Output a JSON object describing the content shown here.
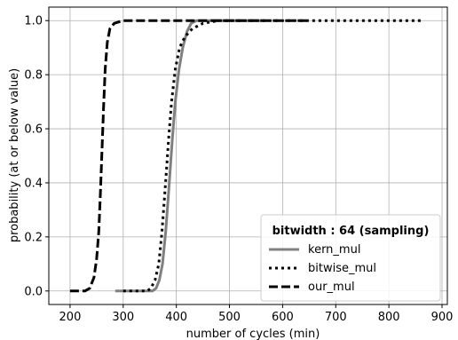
{
  "chart_data": {
    "type": "line",
    "xlabel": "number of cycles (min)",
    "ylabel": "probability (at or below value)",
    "xlim": [
      160,
      910
    ],
    "ylim": [
      -0.05,
      1.05
    ],
    "xticks": [
      200,
      300,
      400,
      500,
      600,
      700,
      800,
      900
    ],
    "yticks": [
      0.0,
      0.2,
      0.4,
      0.6,
      0.8,
      1.0
    ],
    "grid": true,
    "legend": {
      "title": "bitwidth :  64 (sampling)",
      "position": "lower-right",
      "entries": [
        "kern_mul",
        "bitwise_mul",
        "our_mul"
      ]
    },
    "series": [
      {
        "name": "kern_mul",
        "style": "solid",
        "color": "#808080",
        "points": [
          [
            285,
            0.0
          ],
          [
            355,
            0.0
          ],
          [
            362,
            0.01
          ],
          [
            368,
            0.04
          ],
          [
            374,
            0.1
          ],
          [
            380,
            0.22
          ],
          [
            386,
            0.38
          ],
          [
            392,
            0.55
          ],
          [
            398,
            0.7
          ],
          [
            405,
            0.82
          ],
          [
            412,
            0.9
          ],
          [
            420,
            0.96
          ],
          [
            428,
            0.99
          ],
          [
            438,
            1.0
          ],
          [
            560,
            1.0
          ]
        ]
      },
      {
        "name": "bitwise_mul",
        "style": "dotted",
        "color": "#000000",
        "points": [
          [
            300,
            0.0
          ],
          [
            345,
            0.0
          ],
          [
            352,
            0.01
          ],
          [
            360,
            0.04
          ],
          [
            367,
            0.1
          ],
          [
            373,
            0.22
          ],
          [
            379,
            0.38
          ],
          [
            385,
            0.55
          ],
          [
            391,
            0.7
          ],
          [
            398,
            0.82
          ],
          [
            406,
            0.9
          ],
          [
            416,
            0.94
          ],
          [
            430,
            0.97
          ],
          [
            450,
            0.99
          ],
          [
            480,
            1.0
          ],
          [
            865,
            1.0
          ]
        ]
      },
      {
        "name": "our_mul",
        "style": "dashed",
        "color": "#000000",
        "points": [
          [
            200,
            0.0
          ],
          [
            228,
            0.0
          ],
          [
            237,
            0.01
          ],
          [
            245,
            0.05
          ],
          [
            250,
            0.12
          ],
          [
            254,
            0.22
          ],
          [
            257,
            0.36
          ],
          [
            260,
            0.52
          ],
          [
            263,
            0.68
          ],
          [
            266,
            0.82
          ],
          [
            270,
            0.92
          ],
          [
            275,
            0.97
          ],
          [
            283,
            0.99
          ],
          [
            300,
            1.0
          ],
          [
            650,
            1.0
          ]
        ]
      }
    ]
  }
}
